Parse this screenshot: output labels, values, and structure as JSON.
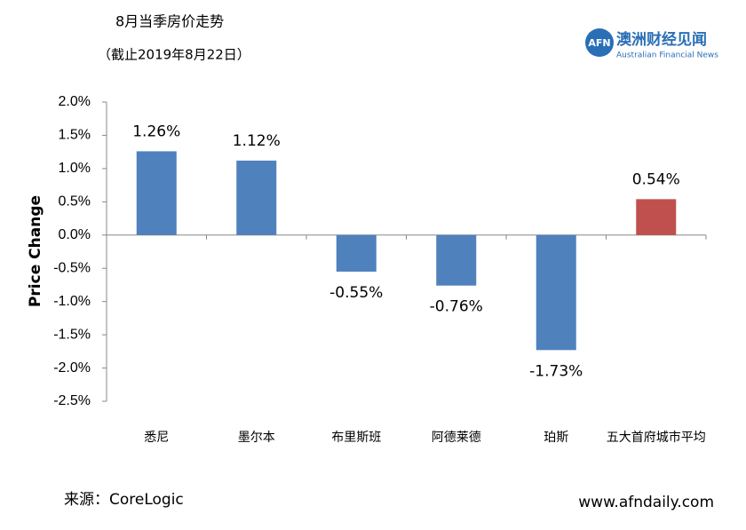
{
  "header": {
    "title": "8月当季房价走势",
    "subtitle": "（截止2019年8月22日）",
    "logo": {
      "mark": "AFN",
      "name": "澳洲财经见闻",
      "tagline": "Australian Financial News"
    }
  },
  "chart_data": {
    "type": "bar",
    "y_label": "Price Change",
    "categories": [
      "悉尼",
      "墨尔本",
      "布里斯班",
      "阿德莱德",
      "珀斯",
      "五大首府城市平均"
    ],
    "values": [
      1.26,
      1.12,
      -0.55,
      -0.76,
      -1.73,
      0.54
    ],
    "value_labels": [
      "1.26%",
      "1.12%",
      "-0.55%",
      "-0.76%",
      "-1.73%",
      "0.54%"
    ],
    "colors": [
      "#4f81bd",
      "#4f81bd",
      "#4f81bd",
      "#4f81bd",
      "#4f81bd",
      "#c0504d"
    ],
    "ylim": [
      -2.5,
      2.0
    ],
    "yticks": [
      {
        "value": 2.0,
        "label": "2.0%"
      },
      {
        "value": 1.5,
        "label": "1.5%"
      },
      {
        "value": 1.0,
        "label": "1.0%"
      },
      {
        "value": 0.5,
        "label": "0.5%"
      },
      {
        "value": 0,
        "label": "0.0%"
      },
      {
        "value": -0.5,
        "label": "-0.5%"
      },
      {
        "value": -1.0,
        "label": "-1.0%"
      },
      {
        "value": -1.5,
        "label": "-1.5%"
      },
      {
        "value": -2.0,
        "label": "-2.0%"
      },
      {
        "value": -2.5,
        "label": "-2.5%"
      }
    ],
    "grid": false
  },
  "footer": {
    "source": "来源：CoreLogic",
    "website": "www.afndaily.com"
  }
}
